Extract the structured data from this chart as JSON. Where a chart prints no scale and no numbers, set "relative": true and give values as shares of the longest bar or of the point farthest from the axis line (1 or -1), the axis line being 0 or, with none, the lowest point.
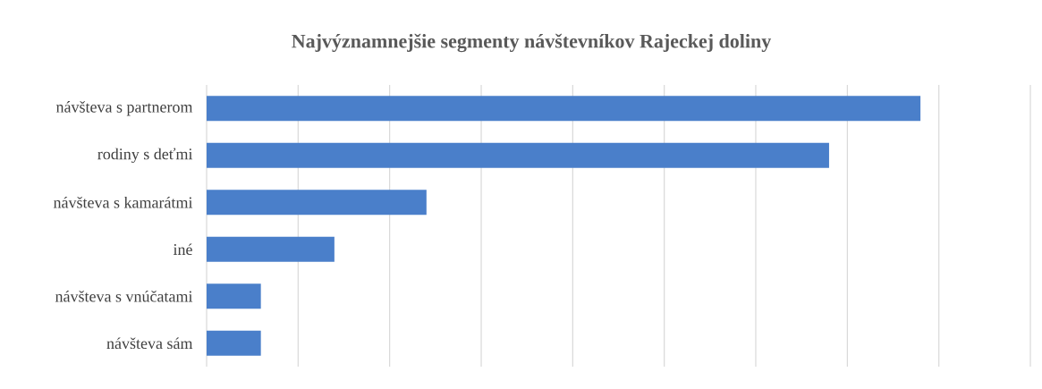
{
  "chart_data": {
    "type": "bar",
    "orientation": "horizontal",
    "relative": true,
    "title": "Najvýznamnejšie segmenty návštevníkov  Rajeckej doliny",
    "categories": [
      "návšteva s partnerom",
      "rodiny s deťmi",
      "návšteva s kamarátmi",
      "iné",
      "návšteva s vnúčatami",
      "návšteva sám"
    ],
    "values": [
      1.0,
      0.872,
      0.308,
      0.179,
      0.076,
      0.076
    ],
    "color": "#4a7fca",
    "grid": "x"
  }
}
